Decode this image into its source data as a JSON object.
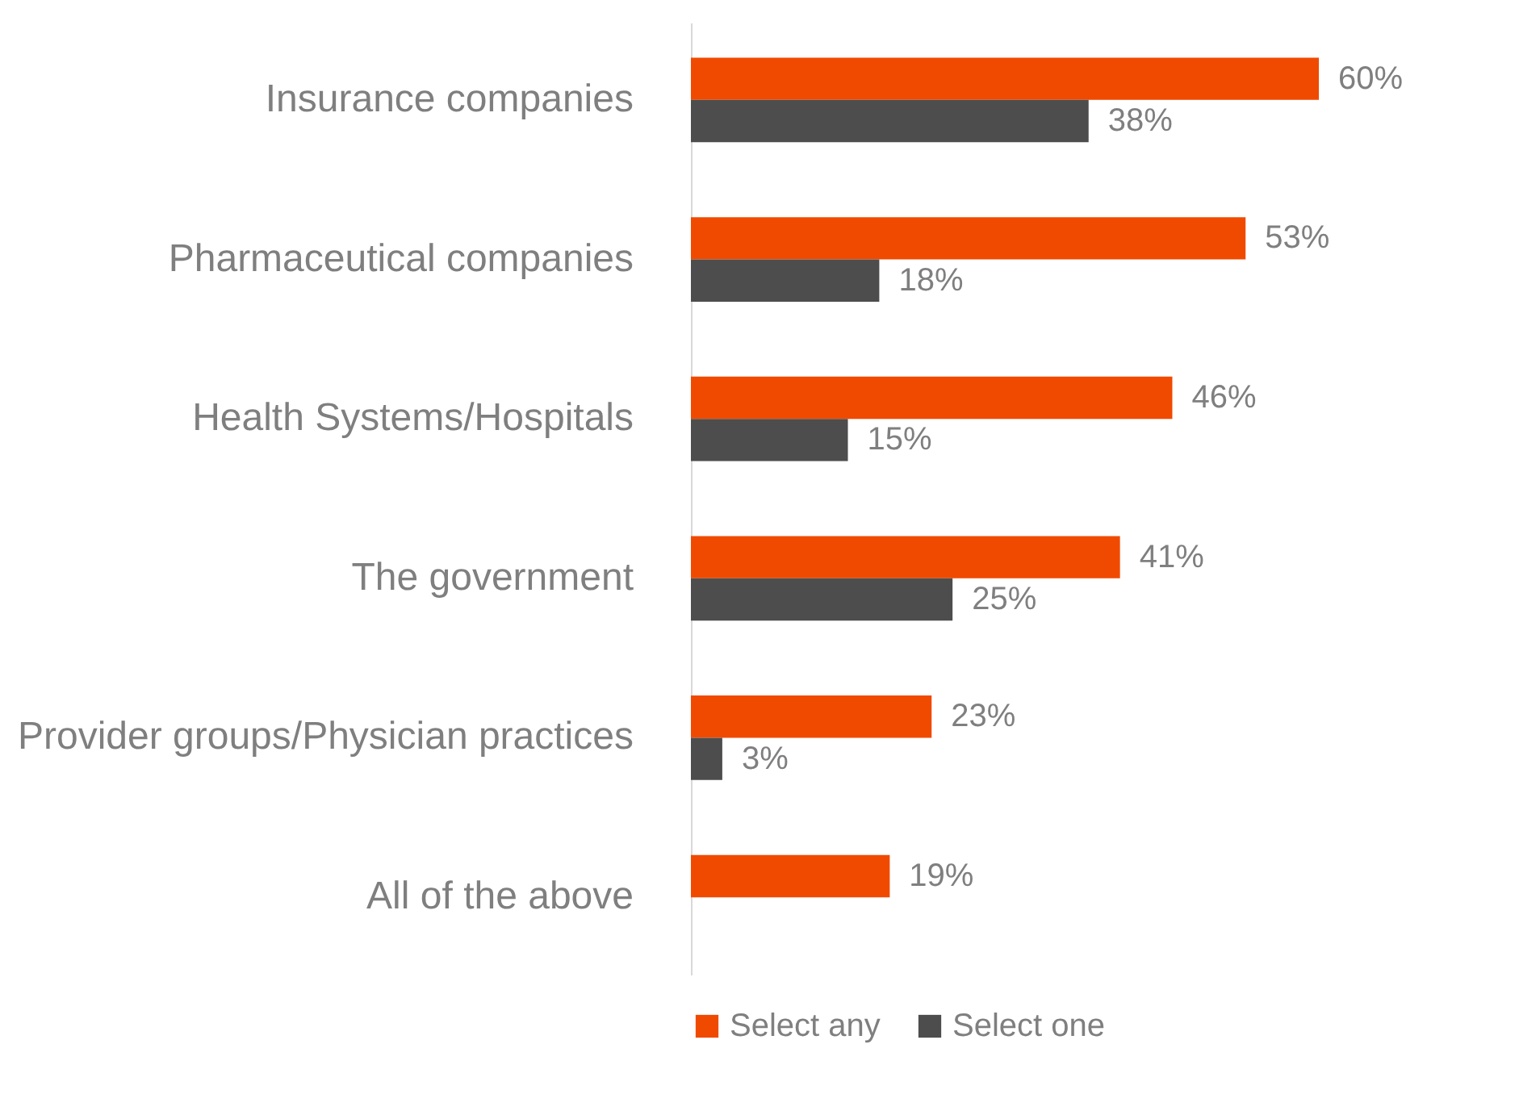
{
  "chart_data": {
    "type": "bar",
    "orientation": "horizontal",
    "categories": [
      "Insurance companies",
      "Pharmaceutical companies",
      "Health Systems/Hospitals",
      "The government",
      "Provider groups/Physician practices",
      "All of the above"
    ],
    "series": [
      {
        "name": "Select any",
        "color": "#f04a00",
        "values": [
          60,
          53,
          46,
          41,
          23,
          19
        ],
        "value_labels": [
          "60%",
          "53%",
          "46%",
          "41%",
          "23%",
          "19%"
        ]
      },
      {
        "name": "Select one",
        "color": "#4d4d4d",
        "values": [
          38,
          18,
          15,
          25,
          3,
          null
        ],
        "value_labels": [
          "38%",
          "18%",
          "15%",
          "25%",
          "3%",
          null
        ]
      }
    ],
    "legend": "bottom"
  }
}
